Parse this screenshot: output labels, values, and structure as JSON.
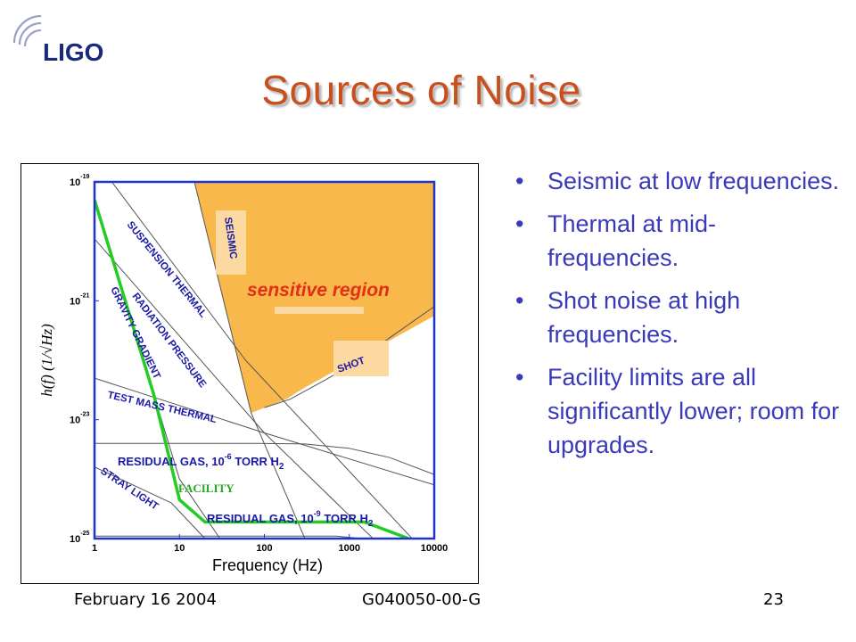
{
  "logo": {
    "text": "LIGO"
  },
  "slide": {
    "title": "Sources of Noise",
    "bullets": [
      "Seismic at low frequencies.",
      "Thermal at mid-frequencies.",
      "Shot noise at high frequencies.",
      "Facility limits are all significantly lower; room for upgrades."
    ],
    "footer": {
      "date": "February 16 2004",
      "doc_id": "G040050-00-G",
      "page": "23"
    }
  },
  "colors": {
    "title": "#c8501e",
    "bullet_text": "#3a3ab8",
    "sensitive_region": "#f8b84c",
    "facility_curve": "#22cc22",
    "axes_frame": "#2233cc",
    "region_label": "#e03018",
    "label_blue": "#1a1aa8"
  },
  "chart_data": {
    "type": "line",
    "xlabel": "Frequency (Hz)",
    "ylabel": "h(f) (1/√Hz)",
    "x_scale": "log",
    "y_scale": "log",
    "xlim": [
      1,
      10000
    ],
    "ylim": [
      1e-25,
      1e-19
    ],
    "x_ticks": [
      {
        "value": 1,
        "label": "1"
      },
      {
        "value": 10,
        "label": "10"
      },
      {
        "value": 100,
        "label": "100"
      },
      {
        "value": 1000,
        "label": "1000"
      },
      {
        "value": 10000,
        "label": "10000"
      }
    ],
    "y_ticks": [
      {
        "value": 1e-25,
        "base": "10",
        "exp": "-25"
      },
      {
        "value": 1e-23,
        "base": "10",
        "exp": "-23"
      },
      {
        "value": 1e-21,
        "base": "10",
        "exp": "-21"
      },
      {
        "value": 1e-19,
        "base": "10",
        "exp": "-19"
      }
    ],
    "region": {
      "label": "sensitive region",
      "points": [
        [
          4,
          1e-19
        ],
        [
          10000,
          1e-19
        ],
        [
          10000,
          5.6e-22
        ],
        [
          270,
          3.2e-23
        ],
        [
          180,
          2.2e-23
        ],
        [
          70,
          1.3e-23
        ],
        [
          15,
          1e-19
        ]
      ]
    },
    "series": [
      {
        "label": "SEISMIC",
        "points": [
          [
            15,
            1e-19
          ],
          [
            70,
            1.3e-23
          ],
          [
            300,
            1e-25
          ]
        ]
      },
      {
        "label": "SUSPENSION THERMAL",
        "points": [
          [
            1.6,
            1e-19
          ],
          [
            60,
            1e-22
          ],
          [
            10000,
            4e-26
          ]
        ]
      },
      {
        "label": "RADIATION PRESSURE",
        "points": [
          [
            1,
            1.1e-20
          ],
          [
            100,
            6e-24
          ],
          [
            10000,
            1e-26
          ]
        ]
      },
      {
        "label": "GRAVITY GRADIENT",
        "points": [
          [
            1,
            5e-20
          ],
          [
            10,
            1e-24
          ],
          [
            30,
            1e-25
          ]
        ]
      },
      {
        "label": "TEST MASS THERMAL",
        "points": [
          [
            1,
            5e-23
          ],
          [
            100,
            6e-24
          ],
          [
            10000,
            8e-25
          ]
        ]
      },
      {
        "label": "SHOT",
        "points": [
          [
            100,
            1.6e-23
          ],
          [
            200,
            2.2e-23
          ],
          [
            500,
            4.5e-23
          ],
          [
            1000,
            8e-23
          ],
          [
            3000,
            2.4e-22
          ],
          [
            10000,
            8e-22
          ]
        ]
      },
      {
        "label": "RESIDUAL GAS, 10-6 TORR H2",
        "points": [
          [
            1,
            4e-24
          ],
          [
            80,
            4e-24
          ],
          [
            300,
            3.9e-24
          ],
          [
            1000,
            3.3e-24
          ],
          [
            3000,
            2.3e-24
          ],
          [
            10000,
            1.2e-24
          ]
        ]
      },
      {
        "label": "RESIDUAL GAS, 10-9 TORR H2",
        "points": [
          [
            1,
            1.1e-25
          ],
          [
            40,
            1.1e-25
          ],
          [
            700,
            1.1e-25
          ],
          [
            3000,
            9e-26
          ],
          [
            10000,
            6e-26
          ]
        ]
      },
      {
        "label": "STRAY LIGHT",
        "points": [
          [
            1,
            1.6e-24
          ],
          [
            8,
            4e-25
          ],
          [
            20,
            1e-25
          ]
        ]
      },
      {
        "label": "FACILITY",
        "points": [
          [
            1,
            5e-20
          ],
          [
            5,
            2.6e-23
          ],
          [
            10,
            4.5e-25
          ],
          [
            20,
            1.9e-25
          ],
          [
            1500,
            1.9e-25
          ],
          [
            5000,
            1e-25
          ]
        ]
      }
    ],
    "labels": {
      "seismic": "SEISMIC",
      "suspension_thermal": "SUSPENSION THERMAL",
      "radiation_pressure": "RADIATION PRESSURE",
      "gravity_gradient": "GRAVITY GRADIENT",
      "test_mass_thermal": "TEST MASS THERMAL",
      "shot": "SHOT",
      "gas6_prefix": "RESIDUAL GAS, 10",
      "gas6_exp": "-6",
      "gas9_prefix": "RESIDUAL GAS, 10",
      "gas9_exp": "-9",
      "torr": " TORR H",
      "h2_sub": "2",
      "stray_light": "STRAY LIGHT",
      "facility": "FACILITY"
    }
  }
}
